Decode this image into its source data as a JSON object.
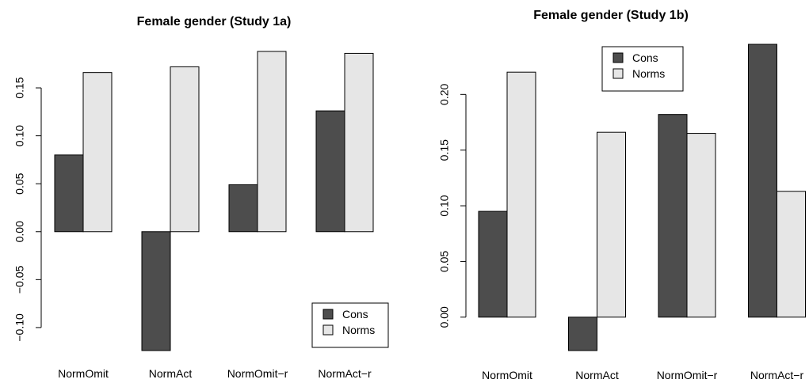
{
  "colors": {
    "Cons": "#4d4d4d",
    "Norms": "#e6e6e6",
    "outline": "#000000"
  },
  "chart_data": [
    {
      "type": "bar",
      "title": "Female gender (Study 1a)",
      "categories": [
        "NormOmit",
        "NormAct",
        "NormOmit−r",
        "NormAct−r"
      ],
      "series": [
        {
          "name": "Cons",
          "values": [
            0.08,
            -0.124,
            0.049,
            0.126
          ]
        },
        {
          "name": "Norms",
          "values": [
            0.166,
            0.172,
            0.188,
            0.186
          ]
        }
      ],
      "ylim": [
        -0.124,
        0.188
      ],
      "yticks": [
        -0.1,
        -0.05,
        0.0,
        0.05,
        0.1,
        0.15
      ],
      "ytick_labels": [
        "−0.10",
        "−0.05",
        "0.00",
        "0.05",
        "0.10",
        "0.15"
      ],
      "xlabel": "",
      "ylabel": "",
      "legend": {
        "position": "bottom-right",
        "entries": [
          "Cons",
          "Norms"
        ]
      },
      "grid": false
    },
    {
      "type": "bar",
      "title": "Female gender (Study 1b)",
      "categories": [
        "NormOmit",
        "NormAct",
        "NormOmit−r",
        "NormAct−r"
      ],
      "series": [
        {
          "name": "Cons",
          "values": [
            0.095,
            -0.03,
            0.182,
            0.245
          ]
        },
        {
          "name": "Norms",
          "values": [
            0.22,
            0.166,
            0.165,
            0.113
          ]
        }
      ],
      "ylim": [
        -0.03,
        0.245
      ],
      "yticks": [
        0.0,
        0.05,
        0.1,
        0.15,
        0.2
      ],
      "ytick_labels": [
        "0.00",
        "0.05",
        "0.10",
        "0.15",
        "0.20"
      ],
      "xlabel": "",
      "ylabel": "",
      "legend": {
        "position": "top-left",
        "entries": [
          "Cons",
          "Norms"
        ]
      },
      "grid": false
    }
  ]
}
